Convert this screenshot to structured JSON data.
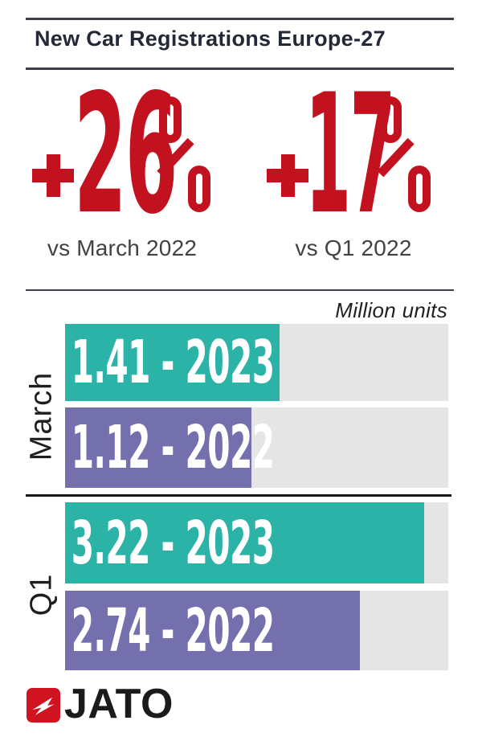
{
  "header": {
    "title": "New Car Registrations Europe-27"
  },
  "highlights": [
    {
      "plus": "+",
      "number": "26",
      "unit": "%",
      "caption": "vs March 2022"
    },
    {
      "plus": "+",
      "number": "17",
      "unit": "%",
      "caption": "vs Q1 2022"
    }
  ],
  "chart": {
    "units_label": "Million units",
    "groups": [
      {
        "label": "March",
        "bars": [
          {
            "series": "2023",
            "value": 1.41,
            "display": "1.41 - 2023",
            "width_pct": 56.0,
            "color": "#2BB3A7"
          },
          {
            "series": "2022",
            "value": 1.12,
            "display": "1.12 - 2022",
            "width_pct": 48.6,
            "color": "#7470AD"
          }
        ]
      },
      {
        "label": "Q1",
        "bars": [
          {
            "series": "2023",
            "value": 3.22,
            "display": "3.22 - 2023",
            "width_pct": 93.7,
            "color": "#2BB3A7"
          },
          {
            "series": "2022",
            "value": 2.74,
            "display": "2.74 - 2022",
            "width_pct": 76.9,
            "color": "#7470AD"
          }
        ]
      }
    ]
  },
  "chart_data": {
    "type": "bar",
    "orientation": "horizontal",
    "title": "New Car Registrations Europe-27",
    "unit": "Million units",
    "categories": [
      "March",
      "Q1"
    ],
    "series": [
      {
        "name": "2023",
        "values": [
          1.41,
          3.22
        ],
        "color": "#2BB3A7"
      },
      {
        "name": "2022",
        "values": [
          1.12,
          2.74
        ],
        "color": "#7470AD"
      }
    ],
    "annotations": [
      "+26% vs March 2022",
      "+17% vs Q1 2022"
    ],
    "value_labels": [
      "1.41 - 2023",
      "1.12 - 2022",
      "3.22 - 2023",
      "2.74 - 2022"
    ],
    "grid": false,
    "legend_position": "none"
  },
  "logo": {
    "brand": "JATO"
  },
  "colors": {
    "accent_red": "#C3121F",
    "teal": "#2BB3A7",
    "purple": "#7470AD",
    "track_gray": "#E6E5E5",
    "title_navy": "#242938",
    "line_dark": "#3C3F45",
    "logo_red": "#D01320",
    "caption_gray": "#414246"
  }
}
